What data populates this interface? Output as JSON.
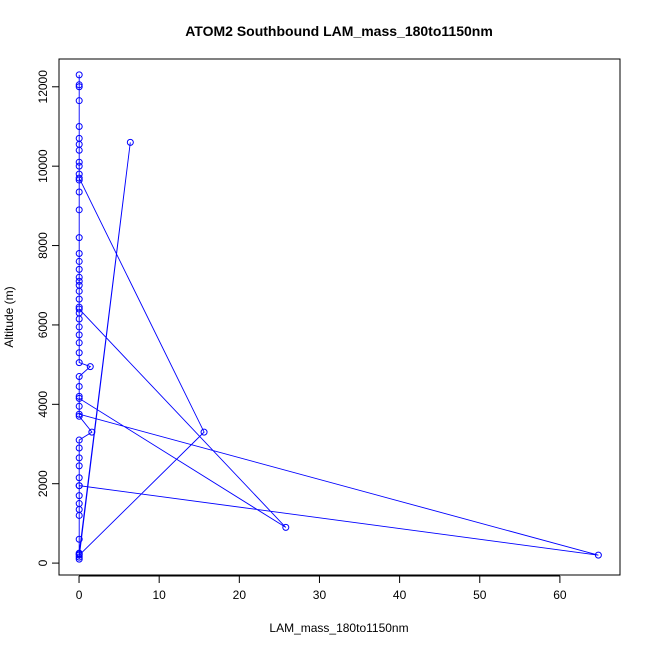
{
  "chart_data": {
    "type": "line",
    "title": "ATOM2 Southbound LAM_mass_180to1150nm",
    "xlabel": "LAM_mass_180to1150nm",
    "ylabel": "Altitude (m)",
    "xlim": [
      -2.5,
      67.5
    ],
    "ylim": [
      -300,
      12700
    ],
    "xticks": [
      0,
      10,
      20,
      30,
      40,
      50,
      60
    ],
    "yticks": [
      0,
      2000,
      4000,
      6000,
      8000,
      10000,
      12000
    ],
    "grid": false,
    "markers": "open-circle",
    "line_color": "#0000FF",
    "series": [
      {
        "points": [
          [
            0.02,
            12300
          ],
          [
            0.02,
            12050
          ],
          [
            0.02,
            12000
          ],
          [
            0.02,
            11650
          ],
          [
            0.02,
            11000
          ],
          [
            0.02,
            10700
          ],
          [
            0.02,
            10550
          ],
          [
            0.02,
            10400
          ],
          [
            0.02,
            10100
          ],
          [
            0.02,
            10000
          ],
          [
            0.02,
            9800
          ],
          [
            0.02,
            9650
          ],
          [
            0.02,
            9350
          ],
          [
            0.02,
            8900
          ],
          [
            0.02,
            8200
          ],
          [
            0.02,
            7800
          ],
          [
            0.02,
            7600
          ],
          [
            0.02,
            7400
          ],
          [
            0.02,
            7200
          ],
          [
            0.02,
            7000
          ],
          [
            0.02,
            6850
          ],
          [
            0.02,
            6650
          ],
          [
            0.02,
            6450
          ],
          [
            0.02,
            6300
          ],
          [
            0.02,
            6150
          ],
          [
            0.02,
            5950
          ],
          [
            0.02,
            5750
          ],
          [
            0.02,
            5550
          ],
          [
            0.02,
            5300
          ],
          [
            0.02,
            5050
          ],
          [
            1.4,
            4950
          ],
          [
            0.02,
            4700
          ],
          [
            0.02,
            4450
          ],
          [
            0.02,
            4200
          ],
          [
            0.02,
            3950
          ],
          [
            0.02,
            3700
          ],
          [
            1.6,
            3300
          ],
          [
            0.02,
            3100
          ],
          [
            0.02,
            2900
          ],
          [
            0.02,
            2650
          ],
          [
            0.02,
            2450
          ],
          [
            0.02,
            2150
          ],
          [
            0.02,
            1950
          ],
          [
            0.02,
            1700
          ],
          [
            0.02,
            1500
          ],
          [
            0.02,
            1350
          ],
          [
            0.02,
            600
          ],
          [
            0.02,
            250
          ],
          [
            6.4,
            10600
          ],
          [
            0.02,
            150
          ],
          [
            0.02,
            100
          ],
          [
            0.02,
            200
          ],
          [
            15.6,
            3300
          ],
          [
            0.02,
            9700
          ],
          [
            0.02,
            7100
          ],
          [
            0.02,
            6400
          ],
          [
            25.8,
            900
          ],
          [
            0.02,
            4150
          ],
          [
            0.02,
            3750
          ],
          [
            64.8,
            200
          ],
          [
            0.02,
            1950
          ],
          [
            0.02,
            1200
          ],
          [
            0.02,
            230
          ]
        ]
      }
    ]
  }
}
